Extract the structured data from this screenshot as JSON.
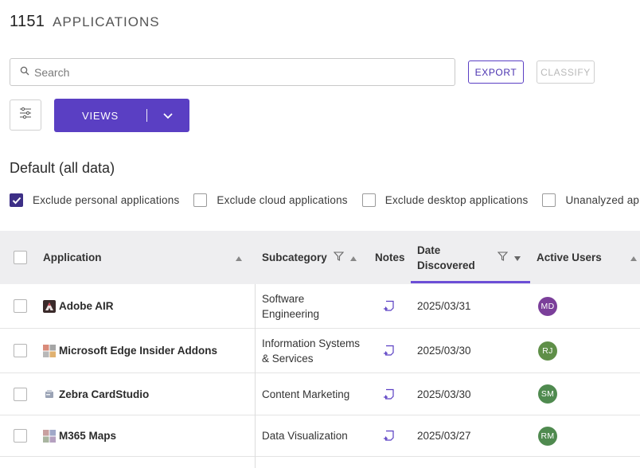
{
  "header": {
    "count": "1151",
    "label": "APPLICATIONS"
  },
  "search": {
    "placeholder": "Search"
  },
  "toolbar": {
    "export_label": "EXPORT",
    "classify_label": "CLASSIFY",
    "views_label": "VIEWS"
  },
  "view": {
    "name": "Default (all data)"
  },
  "filters": [
    {
      "label": "Exclude personal applications",
      "checked": true
    },
    {
      "label": "Exclude cloud applications",
      "checked": false
    },
    {
      "label": "Exclude desktop applications",
      "checked": false
    },
    {
      "label": "Unanalyzed applica",
      "checked": false
    }
  ],
  "table": {
    "columns": {
      "application": "Application",
      "subcategory": "Subcategory",
      "notes": "Notes",
      "date_line1": "Date",
      "date_line2": "Discovered",
      "active_users": "Active Users"
    },
    "rows": [
      {
        "app": "Adobe AIR",
        "icon": "adobe-air-icon",
        "sub1": "Software",
        "sub2": "Engineering",
        "date": "2025/03/31",
        "user": "MD",
        "user_color": "#7b3f9a"
      },
      {
        "app": "Microsoft Edge Insider Addons",
        "icon": "microsoft-icon",
        "sub1": "Information Systems",
        "sub2": "& Services",
        "date": "2025/03/30",
        "user": "RJ",
        "user_color": "#5f8f48"
      },
      {
        "app": "Zebra CardStudio",
        "icon": "zebra-icon",
        "sub1": "Content Marketing",
        "sub2": "",
        "date": "2025/03/30",
        "user": "SM",
        "user_color": "#4f8a4f"
      },
      {
        "app": "M365 Maps",
        "icon": "m365-maps-icon",
        "sub1": "Data Visualization",
        "sub2": "",
        "date": "2025/03/27",
        "user": "RM",
        "user_color": "#4f8a4f"
      }
    ]
  },
  "colors": {
    "accent": "#5a3fc3",
    "checked": "#3d2f86"
  }
}
